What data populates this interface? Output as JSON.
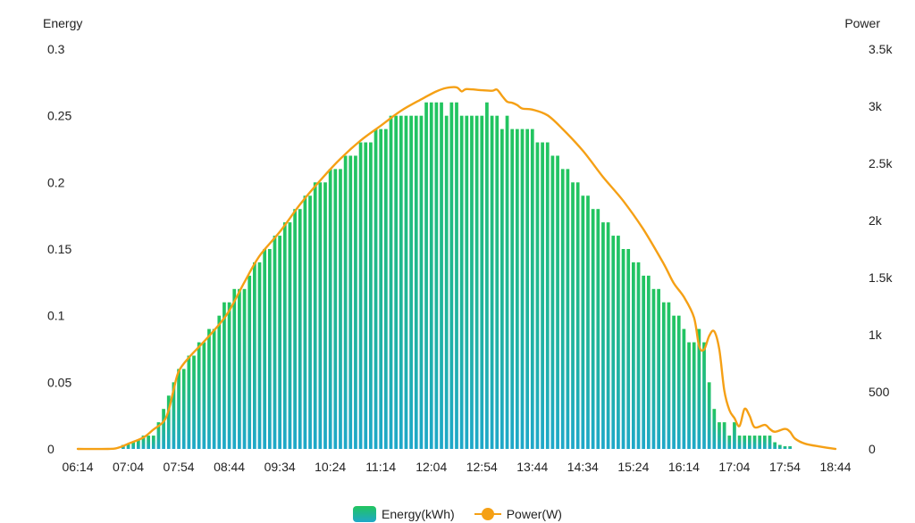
{
  "chart_data": {
    "type": "bar+line",
    "left_axis_title": "Energy",
    "right_axis_title": "Power",
    "left_ticks": [
      "0",
      "0.05",
      "0.1",
      "0.15",
      "0.2",
      "0.25",
      "0.3"
    ],
    "right_ticks": [
      "0",
      "500",
      "1k",
      "1.5k",
      "2k",
      "2.5k",
      "3k",
      "3.5k"
    ],
    "ylim_energy": [
      0,
      0.3
    ],
    "ylim_power": [
      0,
      3500
    ],
    "x_tick_labels": [
      "06:14",
      "07:04",
      "07:54",
      "08:44",
      "09:34",
      "10:24",
      "11:14",
      "12:04",
      "12:54",
      "13:44",
      "14:34",
      "15:24",
      "16:14",
      "17:04",
      "17:54",
      "18:44"
    ],
    "x_start": "06:14",
    "x_end": "18:44",
    "series": [
      {
        "name": "Energy(kWh)",
        "kind": "bar",
        "colors": {
          "top": "#22c55e",
          "bottom": "#1fa8c9"
        },
        "points": [
          [
            "06:59",
            0.003
          ],
          [
            "07:04",
            0.004
          ],
          [
            "07:09",
            0.005
          ],
          [
            "07:14",
            0.007
          ],
          [
            "07:19",
            0.01
          ],
          [
            "07:24",
            0.01
          ],
          [
            "07:29",
            0.01
          ],
          [
            "07:34",
            0.02
          ],
          [
            "07:39",
            0.03
          ],
          [
            "07:44",
            0.04
          ],
          [
            "07:49",
            0.05
          ],
          [
            "07:54",
            0.06
          ],
          [
            "07:59",
            0.06
          ],
          [
            "08:04",
            0.07
          ],
          [
            "08:09",
            0.07
          ],
          [
            "08:14",
            0.08
          ],
          [
            "08:19",
            0.08
          ],
          [
            "08:24",
            0.09
          ],
          [
            "08:29",
            0.09
          ],
          [
            "08:34",
            0.1
          ],
          [
            "08:39",
            0.11
          ],
          [
            "08:44",
            0.11
          ],
          [
            "08:49",
            0.12
          ],
          [
            "08:54",
            0.12
          ],
          [
            "08:59",
            0.12
          ],
          [
            "09:04",
            0.13
          ],
          [
            "09:09",
            0.14
          ],
          [
            "09:14",
            0.14
          ],
          [
            "09:19",
            0.15
          ],
          [
            "09:24",
            0.15
          ],
          [
            "09:29",
            0.16
          ],
          [
            "09:34",
            0.16
          ],
          [
            "09:39",
            0.17
          ],
          [
            "09:44",
            0.17
          ],
          [
            "09:49",
            0.18
          ],
          [
            "09:54",
            0.18
          ],
          [
            "09:59",
            0.19
          ],
          [
            "10:04",
            0.19
          ],
          [
            "10:09",
            0.2
          ],
          [
            "10:14",
            0.2
          ],
          [
            "10:19",
            0.2
          ],
          [
            "10:24",
            0.21
          ],
          [
            "10:29",
            0.21
          ],
          [
            "10:34",
            0.21
          ],
          [
            "10:39",
            0.22
          ],
          [
            "10:44",
            0.22
          ],
          [
            "10:49",
            0.22
          ],
          [
            "10:54",
            0.23
          ],
          [
            "10:59",
            0.23
          ],
          [
            "11:04",
            0.23
          ],
          [
            "11:09",
            0.24
          ],
          [
            "11:14",
            0.24
          ],
          [
            "11:19",
            0.24
          ],
          [
            "11:24",
            0.25
          ],
          [
            "11:29",
            0.25
          ],
          [
            "11:34",
            0.25
          ],
          [
            "11:39",
            0.25
          ],
          [
            "11:44",
            0.25
          ],
          [
            "11:49",
            0.25
          ],
          [
            "11:54",
            0.25
          ],
          [
            "11:59",
            0.26
          ],
          [
            "12:04",
            0.26
          ],
          [
            "12:09",
            0.26
          ],
          [
            "12:14",
            0.26
          ],
          [
            "12:19",
            0.25
          ],
          [
            "12:24",
            0.26
          ],
          [
            "12:29",
            0.26
          ],
          [
            "12:34",
            0.25
          ],
          [
            "12:39",
            0.25
          ],
          [
            "12:44",
            0.25
          ],
          [
            "12:49",
            0.25
          ],
          [
            "12:54",
            0.25
          ],
          [
            "12:59",
            0.26
          ],
          [
            "13:04",
            0.25
          ],
          [
            "13:09",
            0.25
          ],
          [
            "13:14",
            0.24
          ],
          [
            "13:19",
            0.25
          ],
          [
            "13:24",
            0.24
          ],
          [
            "13:29",
            0.24
          ],
          [
            "13:34",
            0.24
          ],
          [
            "13:39",
            0.24
          ],
          [
            "13:44",
            0.24
          ],
          [
            "13:49",
            0.23
          ],
          [
            "13:54",
            0.23
          ],
          [
            "13:59",
            0.23
          ],
          [
            "14:04",
            0.22
          ],
          [
            "14:09",
            0.22
          ],
          [
            "14:14",
            0.21
          ],
          [
            "14:19",
            0.21
          ],
          [
            "14:24",
            0.2
          ],
          [
            "14:29",
            0.2
          ],
          [
            "14:34",
            0.19
          ],
          [
            "14:39",
            0.19
          ],
          [
            "14:44",
            0.18
          ],
          [
            "14:49",
            0.18
          ],
          [
            "14:54",
            0.17
          ],
          [
            "14:59",
            0.17
          ],
          [
            "15:04",
            0.16
          ],
          [
            "15:09",
            0.16
          ],
          [
            "15:14",
            0.15
          ],
          [
            "15:19",
            0.15
          ],
          [
            "15:24",
            0.14
          ],
          [
            "15:29",
            0.14
          ],
          [
            "15:34",
            0.13
          ],
          [
            "15:39",
            0.13
          ],
          [
            "15:44",
            0.12
          ],
          [
            "15:49",
            0.12
          ],
          [
            "15:54",
            0.11
          ],
          [
            "15:59",
            0.11
          ],
          [
            "16:04",
            0.1
          ],
          [
            "16:09",
            0.1
          ],
          [
            "16:14",
            0.09
          ],
          [
            "16:19",
            0.08
          ],
          [
            "16:24",
            0.08
          ],
          [
            "16:29",
            0.09
          ],
          [
            "16:34",
            0.08
          ],
          [
            "16:39",
            0.05
          ],
          [
            "16:44",
            0.03
          ],
          [
            "16:49",
            0.02
          ],
          [
            "16:54",
            0.02
          ],
          [
            "16:59",
            0.01
          ],
          [
            "17:04",
            0.02
          ],
          [
            "17:09",
            0.01
          ],
          [
            "17:14",
            0.01
          ],
          [
            "17:19",
            0.01
          ],
          [
            "17:24",
            0.01
          ],
          [
            "17:29",
            0.01
          ],
          [
            "17:34",
            0.01
          ],
          [
            "17:39",
            0.01
          ],
          [
            "17:44",
            0.005
          ],
          [
            "17:49",
            0.003
          ],
          [
            "17:54",
            0.002
          ],
          [
            "17:59",
            0.002
          ]
        ]
      },
      {
        "name": "Power(W)",
        "kind": "line",
        "color": "#f5a015",
        "points": [
          [
            "06:14",
            0
          ],
          [
            "06:44",
            0
          ],
          [
            "06:54",
            10
          ],
          [
            "07:04",
            45
          ],
          [
            "07:19",
            100
          ],
          [
            "07:29",
            170
          ],
          [
            "07:39",
            240
          ],
          [
            "07:44",
            340
          ],
          [
            "07:49",
            520
          ],
          [
            "07:54",
            680
          ],
          [
            "08:04",
            800
          ],
          [
            "08:19",
            940
          ],
          [
            "08:34",
            1090
          ],
          [
            "08:44",
            1210
          ],
          [
            "08:59",
            1460
          ],
          [
            "09:14",
            1690
          ],
          [
            "09:34",
            1900
          ],
          [
            "09:54",
            2140
          ],
          [
            "10:14",
            2350
          ],
          [
            "10:34",
            2540
          ],
          [
            "10:54",
            2700
          ],
          [
            "11:14",
            2830
          ],
          [
            "11:34",
            2960
          ],
          [
            "11:54",
            3060
          ],
          [
            "12:09",
            3130
          ],
          [
            "12:19",
            3160
          ],
          [
            "12:29",
            3165
          ],
          [
            "12:34",
            3130
          ],
          [
            "12:39",
            3150
          ],
          [
            "12:54",
            3140
          ],
          [
            "13:04",
            3135
          ],
          [
            "13:09",
            3145
          ],
          [
            "13:14",
            3090
          ],
          [
            "13:19",
            3040
          ],
          [
            "13:24",
            3030
          ],
          [
            "13:29",
            3010
          ],
          [
            "13:34",
            2980
          ],
          [
            "13:44",
            2970
          ],
          [
            "13:59",
            2920
          ],
          [
            "14:14",
            2800
          ],
          [
            "14:34",
            2610
          ],
          [
            "14:54",
            2380
          ],
          [
            "15:14",
            2170
          ],
          [
            "15:34",
            1920
          ],
          [
            "15:54",
            1620
          ],
          [
            "16:04",
            1450
          ],
          [
            "16:14",
            1330
          ],
          [
            "16:24",
            1150
          ],
          [
            "16:29",
            900
          ],
          [
            "16:34",
            870
          ],
          [
            "16:39",
            990
          ],
          [
            "16:44",
            1030
          ],
          [
            "16:49",
            870
          ],
          [
            "16:54",
            510
          ],
          [
            "16:59",
            340
          ],
          [
            "17:04",
            270
          ],
          [
            "17:09",
            200
          ],
          [
            "17:14",
            350
          ],
          [
            "17:19",
            290
          ],
          [
            "17:24",
            190
          ],
          [
            "17:34",
            210
          ],
          [
            "17:39",
            175
          ],
          [
            "17:44",
            150
          ],
          [
            "17:54",
            175
          ],
          [
            "17:59",
            150
          ],
          [
            "18:04",
            90
          ],
          [
            "18:14",
            45
          ],
          [
            "18:29",
            20
          ],
          [
            "18:44",
            0
          ]
        ]
      }
    ],
    "legend_position": "bottom-center",
    "grid": false
  }
}
